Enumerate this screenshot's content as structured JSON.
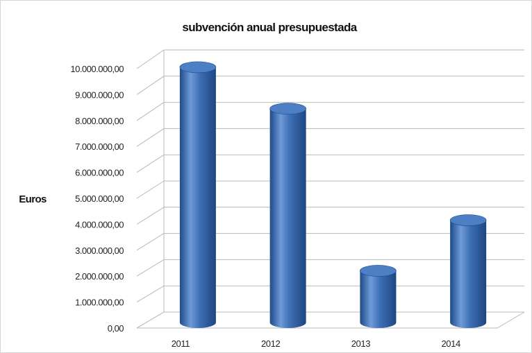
{
  "chart_data": {
    "type": "bar",
    "title": "subvención anual presupuestada",
    "ylabel": "Euros",
    "xlabel": "",
    "categories": [
      "2011",
      "2012",
      "2013",
      "2014"
    ],
    "values": [
      9950000,
      8350000,
      2100000,
      4050000
    ],
    "ylim": [
      0,
      10000000
    ],
    "yticks": [
      {
        "value": 0,
        "label": "0,00"
      },
      {
        "value": 1000000,
        "label": "1.000.000,00"
      },
      {
        "value": 2000000,
        "label": "2.000.000,00"
      },
      {
        "value": 3000000,
        "label": "3.000.000,00"
      },
      {
        "value": 4000000,
        "label": "4.000.000,00"
      },
      {
        "value": 5000000,
        "label": "5.000.000,00"
      },
      {
        "value": 6000000,
        "label": "6.000.000,00"
      },
      {
        "value": 7000000,
        "label": "7.000.000,00"
      },
      {
        "value": 8000000,
        "label": "8.000.000,00"
      },
      {
        "value": 9000000,
        "label": "9.000.000,00"
      },
      {
        "value": 10000000,
        "label": "10.000.000,00"
      }
    ],
    "grid": true,
    "style": "3d-cylinder",
    "colors": {
      "bar": "#3e6fb5",
      "bar_dark": "#1f4a8a",
      "bar_light": "#6f9ad8",
      "top": "#4d7fc4",
      "grid": "#b8b8b8"
    }
  }
}
